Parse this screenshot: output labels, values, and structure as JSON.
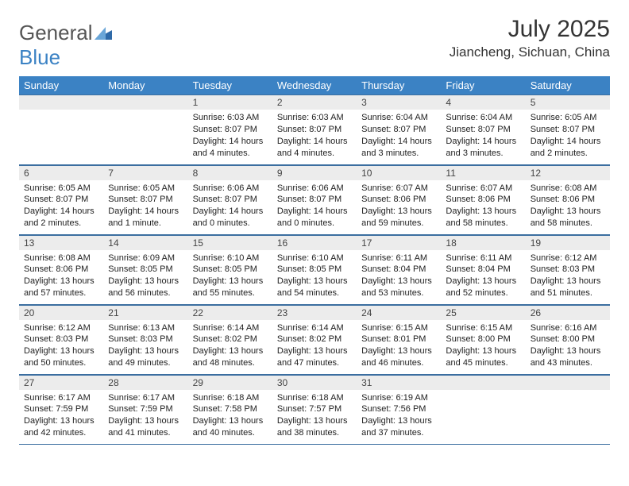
{
  "brand": {
    "part1": "General",
    "part2": "Blue"
  },
  "title": "July 2025",
  "location": "Jiancheng, Sichuan, China",
  "colors": {
    "header_bg": "#3b82c4",
    "header_text": "#ffffff",
    "daynum_bg": "#ececec",
    "rule": "#3b6ea0",
    "text": "#222222"
  },
  "weekdays": [
    "Sunday",
    "Monday",
    "Tuesday",
    "Wednesday",
    "Thursday",
    "Friday",
    "Saturday"
  ],
  "weeks": [
    [
      {
        "blank": true
      },
      {
        "blank": true
      },
      {
        "day": "1",
        "sunrise": "Sunrise: 6:03 AM",
        "sunset": "Sunset: 8:07 PM",
        "daylight": "Daylight: 14 hours and 4 minutes."
      },
      {
        "day": "2",
        "sunrise": "Sunrise: 6:03 AM",
        "sunset": "Sunset: 8:07 PM",
        "daylight": "Daylight: 14 hours and 4 minutes."
      },
      {
        "day": "3",
        "sunrise": "Sunrise: 6:04 AM",
        "sunset": "Sunset: 8:07 PM",
        "daylight": "Daylight: 14 hours and 3 minutes."
      },
      {
        "day": "4",
        "sunrise": "Sunrise: 6:04 AM",
        "sunset": "Sunset: 8:07 PM",
        "daylight": "Daylight: 14 hours and 3 minutes."
      },
      {
        "day": "5",
        "sunrise": "Sunrise: 6:05 AM",
        "sunset": "Sunset: 8:07 PM",
        "daylight": "Daylight: 14 hours and 2 minutes."
      }
    ],
    [
      {
        "day": "6",
        "sunrise": "Sunrise: 6:05 AM",
        "sunset": "Sunset: 8:07 PM",
        "daylight": "Daylight: 14 hours and 2 minutes."
      },
      {
        "day": "7",
        "sunrise": "Sunrise: 6:05 AM",
        "sunset": "Sunset: 8:07 PM",
        "daylight": "Daylight: 14 hours and 1 minute."
      },
      {
        "day": "8",
        "sunrise": "Sunrise: 6:06 AM",
        "sunset": "Sunset: 8:07 PM",
        "daylight": "Daylight: 14 hours and 0 minutes."
      },
      {
        "day": "9",
        "sunrise": "Sunrise: 6:06 AM",
        "sunset": "Sunset: 8:07 PM",
        "daylight": "Daylight: 14 hours and 0 minutes."
      },
      {
        "day": "10",
        "sunrise": "Sunrise: 6:07 AM",
        "sunset": "Sunset: 8:06 PM",
        "daylight": "Daylight: 13 hours and 59 minutes."
      },
      {
        "day": "11",
        "sunrise": "Sunrise: 6:07 AM",
        "sunset": "Sunset: 8:06 PM",
        "daylight": "Daylight: 13 hours and 58 minutes."
      },
      {
        "day": "12",
        "sunrise": "Sunrise: 6:08 AM",
        "sunset": "Sunset: 8:06 PM",
        "daylight": "Daylight: 13 hours and 58 minutes."
      }
    ],
    [
      {
        "day": "13",
        "sunrise": "Sunrise: 6:08 AM",
        "sunset": "Sunset: 8:06 PM",
        "daylight": "Daylight: 13 hours and 57 minutes."
      },
      {
        "day": "14",
        "sunrise": "Sunrise: 6:09 AM",
        "sunset": "Sunset: 8:05 PM",
        "daylight": "Daylight: 13 hours and 56 minutes."
      },
      {
        "day": "15",
        "sunrise": "Sunrise: 6:10 AM",
        "sunset": "Sunset: 8:05 PM",
        "daylight": "Daylight: 13 hours and 55 minutes."
      },
      {
        "day": "16",
        "sunrise": "Sunrise: 6:10 AM",
        "sunset": "Sunset: 8:05 PM",
        "daylight": "Daylight: 13 hours and 54 minutes."
      },
      {
        "day": "17",
        "sunrise": "Sunrise: 6:11 AM",
        "sunset": "Sunset: 8:04 PM",
        "daylight": "Daylight: 13 hours and 53 minutes."
      },
      {
        "day": "18",
        "sunrise": "Sunrise: 6:11 AM",
        "sunset": "Sunset: 8:04 PM",
        "daylight": "Daylight: 13 hours and 52 minutes."
      },
      {
        "day": "19",
        "sunrise": "Sunrise: 6:12 AM",
        "sunset": "Sunset: 8:03 PM",
        "daylight": "Daylight: 13 hours and 51 minutes."
      }
    ],
    [
      {
        "day": "20",
        "sunrise": "Sunrise: 6:12 AM",
        "sunset": "Sunset: 8:03 PM",
        "daylight": "Daylight: 13 hours and 50 minutes."
      },
      {
        "day": "21",
        "sunrise": "Sunrise: 6:13 AM",
        "sunset": "Sunset: 8:03 PM",
        "daylight": "Daylight: 13 hours and 49 minutes."
      },
      {
        "day": "22",
        "sunrise": "Sunrise: 6:14 AM",
        "sunset": "Sunset: 8:02 PM",
        "daylight": "Daylight: 13 hours and 48 minutes."
      },
      {
        "day": "23",
        "sunrise": "Sunrise: 6:14 AM",
        "sunset": "Sunset: 8:02 PM",
        "daylight": "Daylight: 13 hours and 47 minutes."
      },
      {
        "day": "24",
        "sunrise": "Sunrise: 6:15 AM",
        "sunset": "Sunset: 8:01 PM",
        "daylight": "Daylight: 13 hours and 46 minutes."
      },
      {
        "day": "25",
        "sunrise": "Sunrise: 6:15 AM",
        "sunset": "Sunset: 8:00 PM",
        "daylight": "Daylight: 13 hours and 45 minutes."
      },
      {
        "day": "26",
        "sunrise": "Sunrise: 6:16 AM",
        "sunset": "Sunset: 8:00 PM",
        "daylight": "Daylight: 13 hours and 43 minutes."
      }
    ],
    [
      {
        "day": "27",
        "sunrise": "Sunrise: 6:17 AM",
        "sunset": "Sunset: 7:59 PM",
        "daylight": "Daylight: 13 hours and 42 minutes."
      },
      {
        "day": "28",
        "sunrise": "Sunrise: 6:17 AM",
        "sunset": "Sunset: 7:59 PM",
        "daylight": "Daylight: 13 hours and 41 minutes."
      },
      {
        "day": "29",
        "sunrise": "Sunrise: 6:18 AM",
        "sunset": "Sunset: 7:58 PM",
        "daylight": "Daylight: 13 hours and 40 minutes."
      },
      {
        "day": "30",
        "sunrise": "Sunrise: 6:18 AM",
        "sunset": "Sunset: 7:57 PM",
        "daylight": "Daylight: 13 hours and 38 minutes."
      },
      {
        "day": "31",
        "sunrise": "Sunrise: 6:19 AM",
        "sunset": "Sunset: 7:56 PM",
        "daylight": "Daylight: 13 hours and 37 minutes."
      },
      {
        "blank": true
      },
      {
        "blank": true
      }
    ]
  ]
}
